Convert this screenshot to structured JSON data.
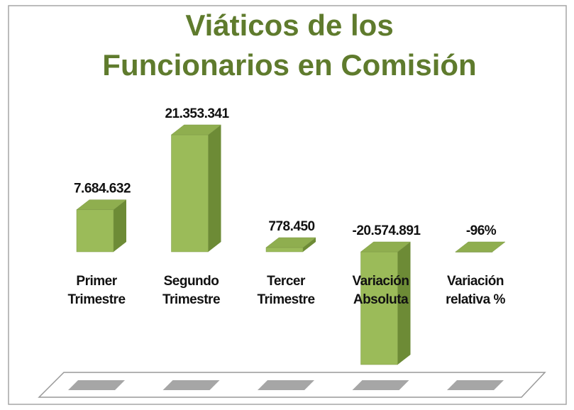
{
  "chart_data": {
    "type": "bar3d",
    "title": [
      "Viáticos de los",
      "Funcionarios en Comisión"
    ],
    "categories": [
      "Primer Trimestre",
      "Segundo Trimestre",
      "Tercer Trimestre",
      "Variación Absoluta",
      "Variación relativa %"
    ],
    "values": [
      7684632,
      21353341,
      778450,
      -20574891,
      -96
    ],
    "value_labels": [
      "7.684.632",
      "21.353.341",
      "778.450",
      "-20.574.891",
      "-96%"
    ],
    "color": "#9bbb59"
  }
}
